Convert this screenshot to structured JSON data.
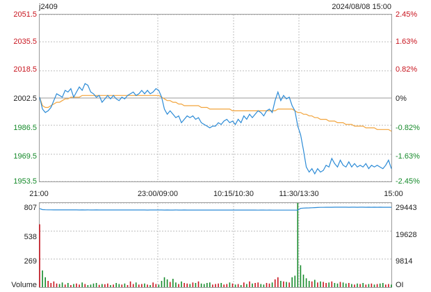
{
  "header": {
    "symbol": "j2409",
    "datetime": "2024/08/08 15:00"
  },
  "colors": {
    "price_line": "#2a8ad6",
    "avg_line": "#f2a33a",
    "up": "#c8141e",
    "down": "#158a2a",
    "neutral": "#222222",
    "grid": "#bdbdbd",
    "oi_line": "#2a8ad6"
  },
  "chart_data": [
    {
      "type": "line",
      "title": "j2409",
      "x_ticks": [
        "21:00",
        "23:00/09:00",
        "10:15/10:30",
        "11:30/13:30",
        "15:00"
      ],
      "y_ticks_left": [
        "2051.5",
        "2035.5",
        "2018.5",
        "2002.5",
        "1986.5",
        "1969.5",
        "1953.5"
      ],
      "y_ticks_right": [
        "2.45%",
        "1.63%",
        "0.82%",
        "0%",
        "-0.82%",
        "-1.63%",
        "-2.45%"
      ],
      "ylim": [
        1953.5,
        2051.5
      ],
      "reference": 2002.5,
      "series": [
        {
          "values": [
            2003,
            1996,
            1994,
            1995,
            1997,
            2001,
            2005,
            2004,
            2003,
            2007,
            2006,
            2008,
            2003,
            2006,
            2009,
            2007,
            2011,
            2010,
            2006,
            2005,
            2003,
            2004,
            2000,
            2002,
            2004,
            2002,
            2004,
            2002,
            2001,
            2003,
            2002,
            2004,
            2005,
            2006,
            2004,
            2005,
            2007,
            2005,
            2007,
            2005,
            2006,
            2008,
            2007,
            2003,
            1996,
            1993,
            1995,
            1993,
            1991,
            1992,
            1988,
            1990,
            1992,
            1991,
            1992,
            1990,
            1991,
            1988,
            1987,
            1986,
            1985,
            1986,
            1986,
            1988,
            1987,
            1989,
            1990,
            1988,
            1989,
            1987,
            1990,
            1988,
            1992,
            1990,
            1993,
            1991,
            1993,
            1995,
            1994,
            1992,
            1995,
            1996,
            1994,
            2001,
            2006,
            2001,
            2004,
            2002,
            2003,
            1998,
            1995,
            1986,
            1981,
            1972,
            1962,
            1959,
            1961,
            1958,
            1961,
            1959,
            1960,
            1963,
            1962,
            1967,
            1964,
            1962,
            1966,
            1963,
            1962,
            1965,
            1962,
            1964,
            1962,
            1963,
            1962,
            1964,
            1961,
            1963,
            1962,
            1963,
            1962,
            1961,
            1963,
            1966,
            1961
          ]
        },
        {
          "values": [
            2003,
            1998,
            1997,
            1997,
            1998,
            1999,
            2000,
            2000,
            2001,
            2002,
            2002,
            2003,
            2003,
            2003,
            2003,
            2004,
            2004,
            2004,
            2004,
            2004,
            2004,
            2004,
            2004,
            2004,
            2004,
            2004,
            2004,
            2004,
            2004,
            2004,
            2004,
            2004,
            2004,
            2004,
            2004,
            2004,
            2004,
            2004,
            2004,
            2004,
            2004,
            2004,
            2004,
            2003,
            2002,
            2001,
            2001,
            2000,
            2000,
            1999,
            1999,
            1998,
            1998,
            1998,
            1998,
            1998,
            1998,
            1997,
            1997,
            1997,
            1996,
            1996,
            1996,
            1996,
            1996,
            1996,
            1996,
            1996,
            1995,
            1995,
            1995,
            1995,
            1995,
            1995,
            1995,
            1995,
            1995,
            1995,
            1995,
            1995,
            1995,
            1995,
            1995,
            1995,
            1996,
            1996,
            1996,
            1996,
            1996,
            1996,
            1995,
            1994,
            1994,
            1993,
            1993,
            1992,
            1992,
            1991,
            1991,
            1990,
            1990,
            1990,
            1989,
            1989,
            1989,
            1988,
            1988,
            1988,
            1987,
            1987,
            1987,
            1986,
            1986,
            1986,
            1986,
            1985,
            1985,
            1985,
            1985,
            1984,
            1984,
            1984,
            1984,
            1984,
            1983
          ]
        }
      ]
    },
    {
      "type": "bar",
      "title": "",
      "ylabel": "Volume",
      "y_ticks_left": [
        "807",
        "538",
        "269"
      ],
      "y_ticks_right": [
        "29443",
        "19628",
        "9814",
        "OI"
      ],
      "ylim": [
        0,
        807
      ],
      "volume": [
        603,
        160,
        95,
        60,
        40,
        55,
        35,
        30,
        45,
        25,
        40,
        20,
        30,
        35,
        25,
        45,
        30,
        20,
        25,
        35,
        40,
        22,
        30,
        28,
        35,
        20,
        25,
        40,
        30,
        25,
        35,
        20,
        55,
        30,
        45,
        25,
        30,
        35,
        25,
        20,
        45,
        30,
        25,
        60,
        95,
        75,
        50,
        80,
        45,
        30,
        55,
        40,
        35,
        30,
        45,
        40,
        55,
        35,
        30,
        40,
        45,
        25,
        30,
        35,
        40,
        25,
        30,
        45,
        35,
        25,
        30,
        20,
        45,
        30,
        55,
        35,
        40,
        45,
        30,
        25,
        40,
        35,
        45,
        75,
        95,
        60,
        55,
        50,
        45,
        95,
        110,
        807,
        210,
        120,
        85,
        60,
        55,
        70,
        45,
        55,
        50,
        40,
        45,
        55,
        40,
        35,
        50,
        45,
        35,
        40,
        30,
        25,
        35,
        30,
        40,
        25,
        30,
        35,
        25,
        30,
        35,
        40,
        25,
        30,
        25
      ],
      "open_interest": [
        28900,
        28550,
        28500,
        28480,
        28470,
        28460,
        28450,
        28450,
        28440,
        28450,
        28440,
        28450,
        28440,
        28440,
        28430,
        28440,
        28430,
        28440,
        28430,
        28430,
        28440,
        28430,
        28430,
        28420,
        28430,
        28430,
        28420,
        28430,
        28420,
        28430,
        28420,
        28420,
        28430,
        28420,
        28420,
        28430,
        28420,
        28420,
        28410,
        28420,
        28420,
        28430,
        28420,
        28420,
        28410,
        28420,
        28410,
        28410,
        28420,
        28410,
        28410,
        28420,
        28410,
        28410,
        28400,
        28410,
        28410,
        28400,
        28410,
        28400,
        28400,
        28410,
        28400,
        28400,
        28410,
        28400,
        28400,
        28390,
        28400,
        28400,
        28390,
        28400,
        28390,
        28390,
        28400,
        28390,
        28390,
        28380,
        28390,
        28390,
        28380,
        28390,
        28380,
        28370,
        28380,
        28370,
        28370,
        28360,
        28370,
        28360,
        28360,
        28340,
        29000,
        29100,
        29150,
        29200,
        29250,
        29300,
        29350,
        29380,
        29400,
        29410,
        29420,
        29430,
        29440,
        29443,
        29440,
        29435,
        29440,
        29430,
        29435,
        29440,
        29430,
        29440,
        29435,
        29430,
        29440,
        29430,
        29435,
        29430,
        29440,
        29430,
        29425,
        29430,
        29420
      ]
    }
  ]
}
